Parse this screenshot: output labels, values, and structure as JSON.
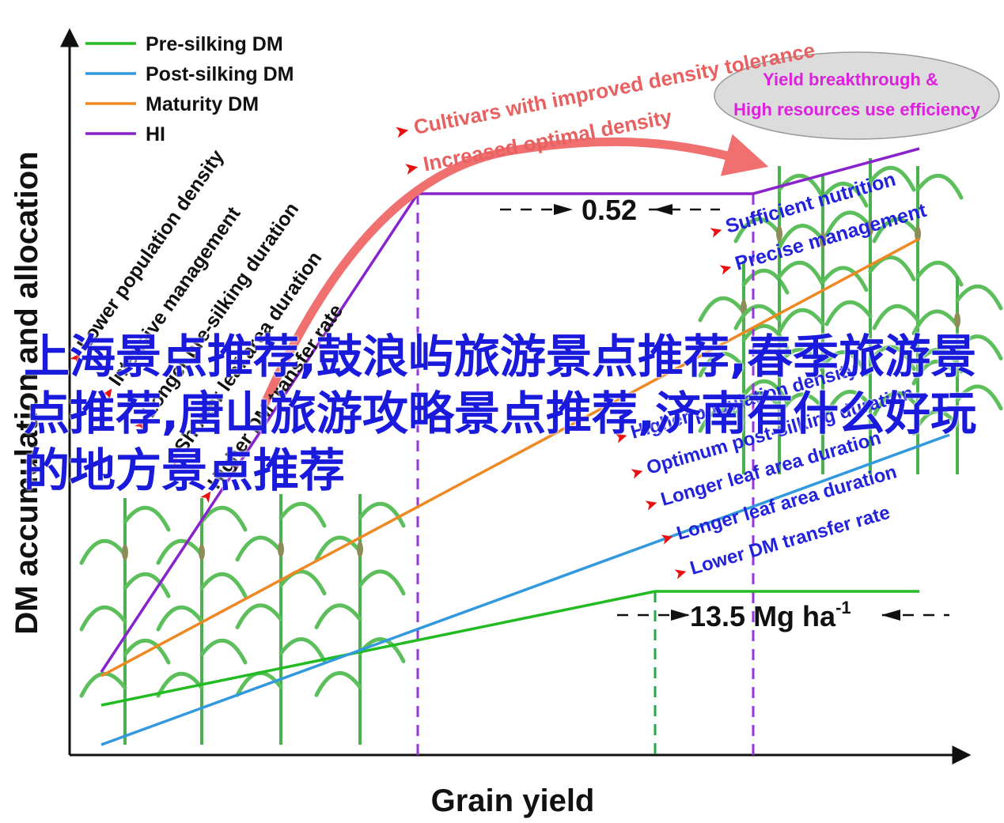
{
  "chart_data": {
    "type": "line",
    "xlabel": "Grain yield",
    "ylabel": "DM accumulation and allocation",
    "legend_position": "top-left",
    "series": [
      {
        "name": "Pre-silking DM",
        "color": "#22bb22"
      },
      {
        "name": "Post-silking DM",
        "color": "#3399dd"
      },
      {
        "name": "Maturity DM",
        "color": "#ee8822"
      },
      {
        "name": "HI",
        "color": "#8822cc"
      }
    ],
    "annotations": {
      "hi_value": "0.52",
      "yield_value": "13.5 Mg ha",
      "yield_unit_exponent": "-1",
      "left_factors": [
        "Lower population density",
        "Intensive management",
        "Longer pre-silking duration",
        "Shorter leaf area duration",
        "Higher DM transfer rate"
      ],
      "arrow_labels": [
        "Cultivars with improved density tolerance",
        "Increased optimal density"
      ],
      "ellipse_lines": [
        "Yield breakthrough &",
        "High resources use efficiency"
      ],
      "right_top_factors": [
        "Sufficient nutrition",
        "Precise management"
      ],
      "right_bottom_factors": [
        "Higher population density",
        "Optimum post-silking duration",
        "Longer leaf area duration",
        "Longer leaf area duration",
        "Lower DM transfer rate"
      ]
    }
  },
  "overlay_text": "上海景点推荐,鼓浪屿旅游景点推荐,春季旅游景点推荐,唐山旅游攻略景点推荐,济南有什么好玩的地方景点推荐"
}
